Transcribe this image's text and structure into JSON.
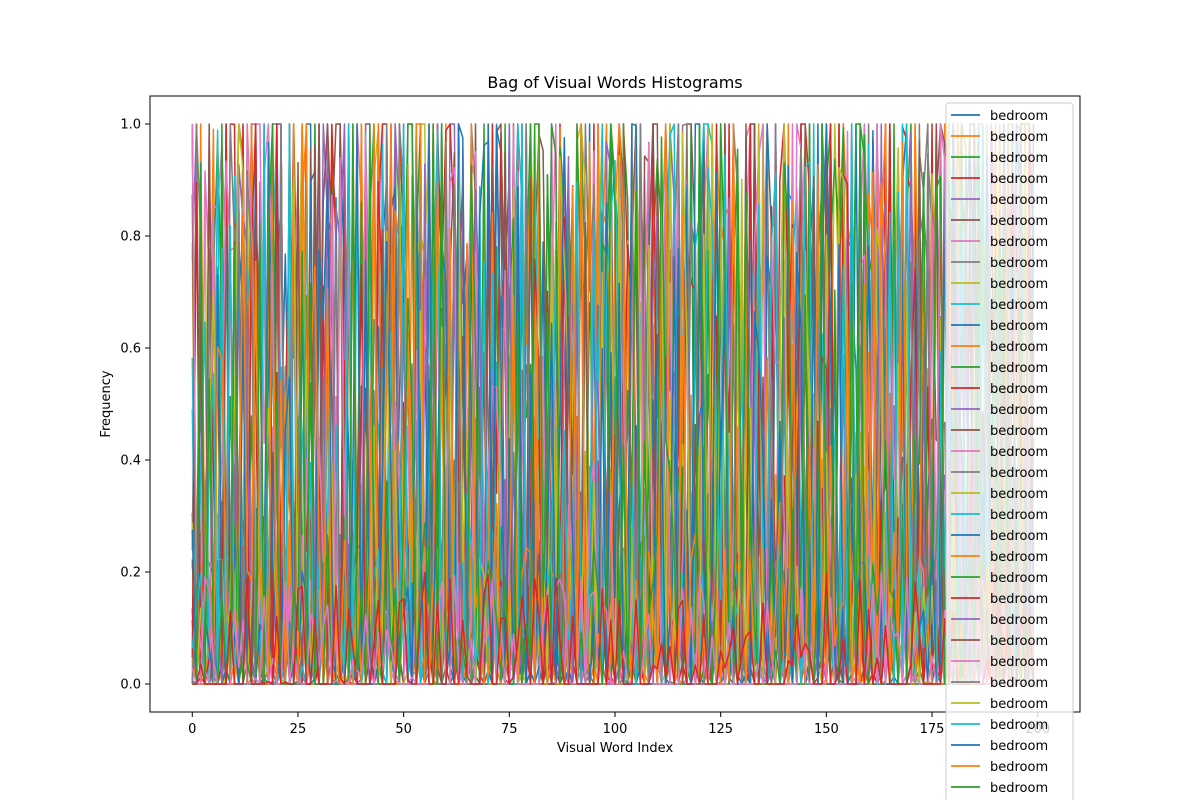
{
  "chart_data": {
    "type": "line",
    "title": "Bag of Visual Words Histograms",
    "xlabel": "Visual Word Index",
    "ylabel": "Frequency",
    "xlim": [
      -10,
      210
    ],
    "ylim": [
      -0.05,
      1.05
    ],
    "x_ticks": [
      0,
      25,
      50,
      75,
      100,
      125,
      150,
      175,
      200
    ],
    "x_tick_labels": [
      "0",
      "25",
      "50",
      "75",
      "100",
      "125",
      "150",
      "175",
      "200"
    ],
    "y_ticks": [
      0.0,
      0.2,
      0.4,
      0.6,
      0.8,
      1.0
    ],
    "y_tick_labels": [
      "0.0",
      "0.2",
      "0.4",
      "0.6",
      "0.8",
      "1.0"
    ],
    "grid": false,
    "legend_position": "upper-right",
    "x": {
      "start": 0,
      "end": 199,
      "step": 1
    },
    "series_note_values": "Dense overlapping histograms; each series spans visual word index 0-199 with frequencies in 0-1",
    "series_names": [
      "bedroom",
      "bedroom",
      "bedroom",
      "bedroom",
      "bedroom",
      "bedroom",
      "bedroom",
      "bedroom",
      "bedroom",
      "bedroom",
      "bedroom",
      "bedroom",
      "bedroom",
      "bedroom",
      "bedroom",
      "bedroom",
      "bedroom",
      "bedroom",
      "bedroom",
      "bedroom",
      "bedroom",
      "bedroom",
      "bedroom",
      "bedroom",
      "bedroom",
      "bedroom",
      "bedroom",
      "bedroom",
      "bedroom",
      "bedroom",
      "bedroom",
      "bedroom",
      "bedroom"
    ],
    "colors": [
      "#1f77b4",
      "#ff7f0e",
      "#2ca02c",
      "#d62728",
      "#9467bd",
      "#8c564b",
      "#e377c2",
      "#7f7f7f",
      "#bcbd22",
      "#17becf"
    ]
  }
}
